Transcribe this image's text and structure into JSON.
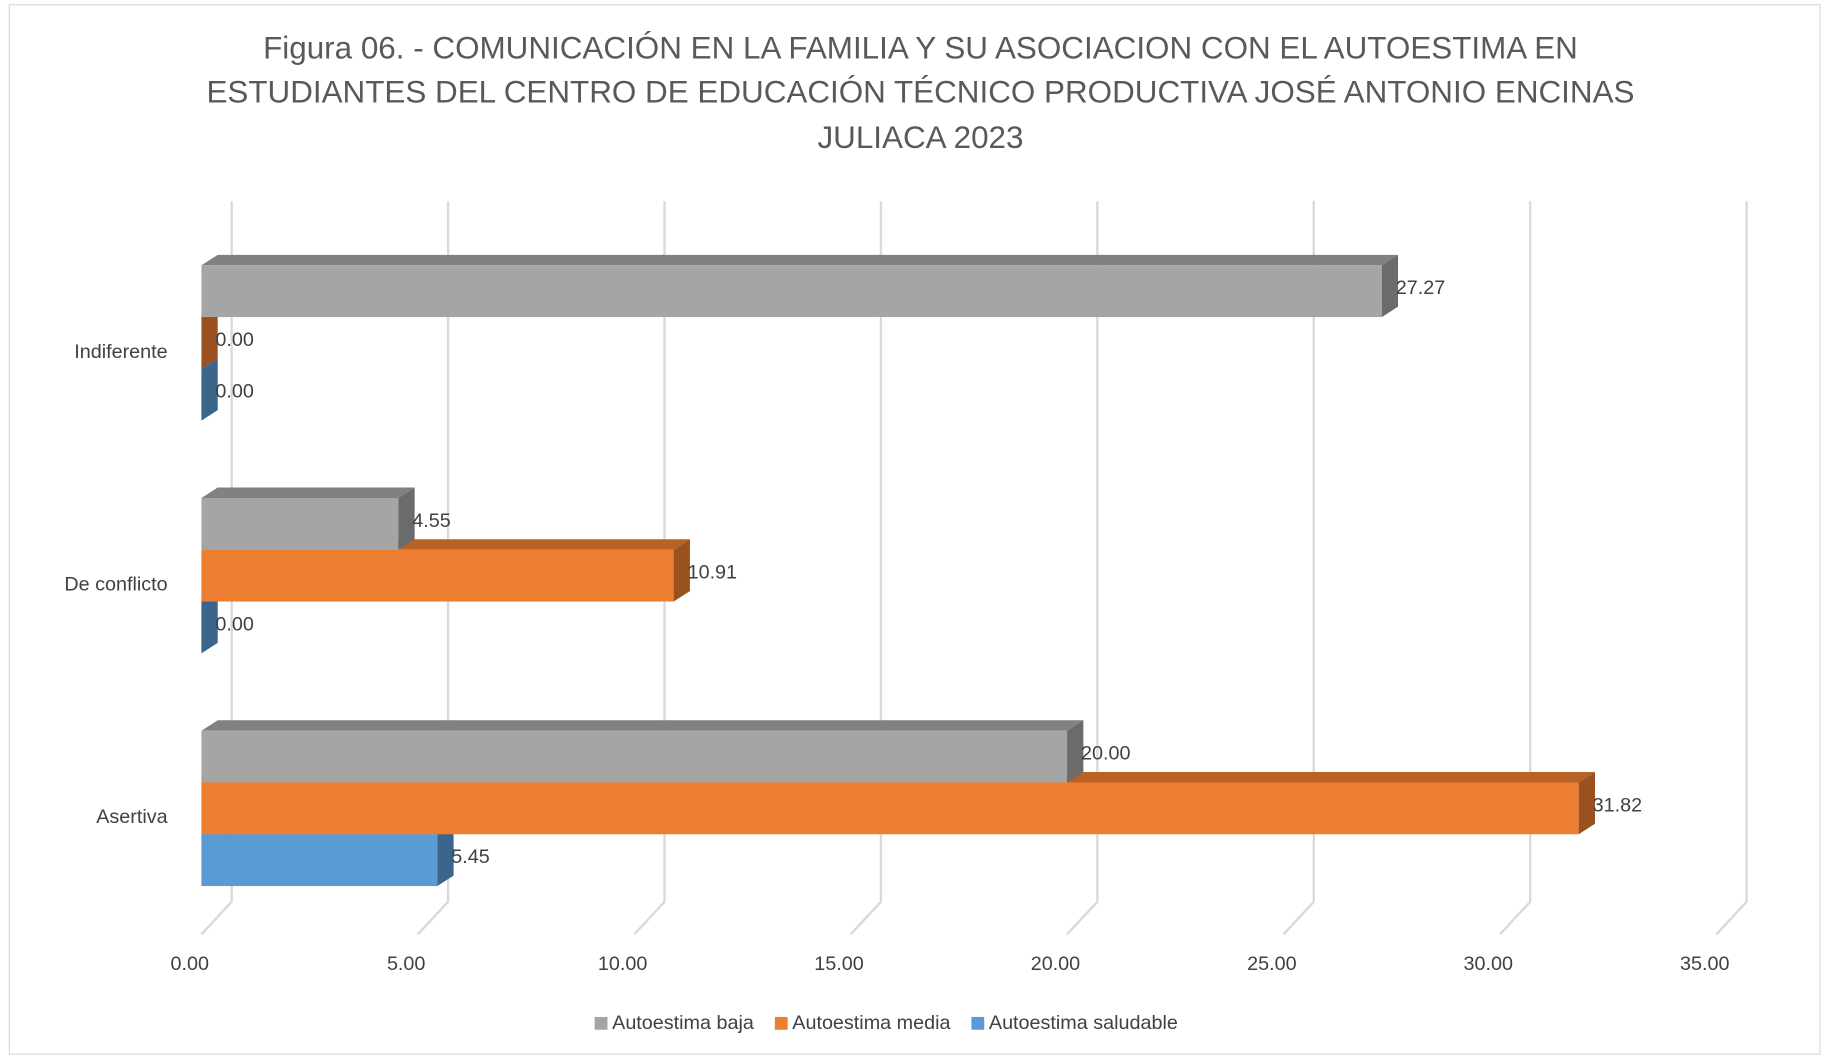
{
  "chart_data": {
    "type": "bar3d_horizontal",
    "title": [
      "Figura 06. - COMUNICACIÓN EN LA FAMILIA Y SU ASOCIACION CON EL AUTOESTIMA EN",
      "ESTUDIANTES DEL CENTRO DE EDUCACIÓN TÉCNICO PRODUCTIVA JOSÉ ANTONIO ENCINAS",
      "JULIACA 2023"
    ],
    "categories": [
      "Asertiva",
      "De conflicto",
      "Indiferente"
    ],
    "series": [
      {
        "name": "Autoestima baja",
        "color": "#a5a5a5",
        "values": [
          20.0,
          4.55,
          27.27
        ],
        "value_labels": [
          "20.00",
          "4.55",
          "27.27"
        ]
      },
      {
        "name": "Autoestima media",
        "color": "#ed7d31",
        "values": [
          31.82,
          10.91,
          0.0
        ],
        "value_labels": [
          "31.82",
          "10.91",
          "0.00"
        ]
      },
      {
        "name": "Autoestima saludable",
        "color": "#5b9bd5",
        "values": [
          5.45,
          0.0,
          0.0
        ],
        "value_labels": [
          "5.45",
          "0.00",
          "0.00"
        ]
      }
    ],
    "xlim": [
      0,
      35
    ],
    "xticks": [
      {
        "value": 0,
        "label": "0.00"
      },
      {
        "value": 5,
        "label": "5.00"
      },
      {
        "value": 10,
        "label": "10.00"
      },
      {
        "value": 15,
        "label": "15.00"
      },
      {
        "value": 20,
        "label": "20.00"
      },
      {
        "value": 25,
        "label": "25.00"
      },
      {
        "value": 30,
        "label": "30.00"
      },
      {
        "value": 35,
        "label": "35.00"
      }
    ],
    "grid": true,
    "legend": "bottom"
  }
}
